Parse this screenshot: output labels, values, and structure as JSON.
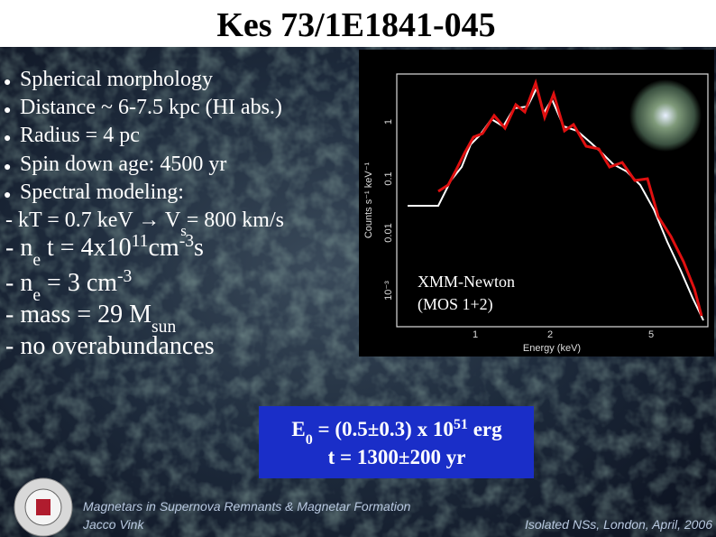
{
  "title": "Kes 73/1E1841-045",
  "bullets": [
    "Spherical morphology",
    "Distance ~ 6-7.5 kpc (HI abs.)",
    "Radius = 4 pc",
    "Spin down age: 4500 yr",
    "Spectral modeling:"
  ],
  "details": [
    [
      "- kT = 0.7 keV → V",
      "s",
      "= 800 km/s"
    ],
    [
      "- n",
      "e",
      " t = 4x10",
      "11",
      "cm",
      "-3",
      "s"
    ],
    [
      "- n",
      "e",
      " = 3 cm",
      "-3"
    ],
    [
      "- mass = 29 M",
      "sun"
    ],
    [
      "- no overabundances"
    ]
  ],
  "spectrum": {
    "y_label": "Counts s⁻¹ keV⁻¹",
    "x_label": "Energy (keV)",
    "y_ticks": [
      "1",
      "0.1",
      "0.01",
      "10⁻³"
    ],
    "x_ticks": [
      "1",
      "2",
      "5"
    ],
    "annotation": [
      "XMM-Newton",
      "(MOS 1+2)"
    ]
  },
  "result_box": [
    [
      "E",
      "0",
      " = (0.5±0.3) x 10",
      "51",
      " erg"
    ],
    [
      "t = 1300±200 yr"
    ]
  ],
  "footer": {
    "left": [
      "Magnetars in Supernova Remnants & Magnetar Formation",
      "Jacco Vink"
    ],
    "right": "Isolated NSs, London, April, 2006"
  }
}
